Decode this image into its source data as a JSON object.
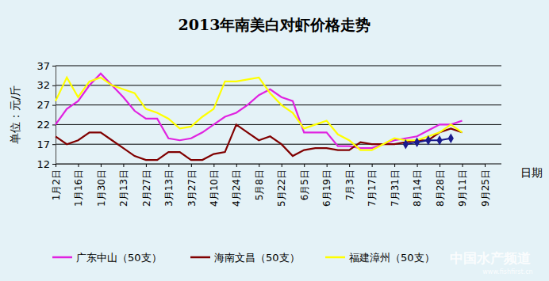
{
  "chart_data": {
    "type": "line",
    "title": "2013年南美白对虾价格走势",
    "y_label": "单位：元/斤",
    "x_label": "日期",
    "annotations": [
      "中国水产频道",
      "www.fishfirst.cn"
    ],
    "categories": [
      "1月2日",
      null,
      "1月16日",
      null,
      "1月30日",
      null,
      "2月13日",
      null,
      "2月27日",
      null,
      "3月13日",
      null,
      "3月27日",
      null,
      "4月10日",
      null,
      "4月24日",
      null,
      "5月8日",
      null,
      "5月22日",
      null,
      "6月5日",
      null,
      "6月19日",
      null,
      "7月3日",
      null,
      "7月17日",
      null,
      "7月31日",
      null,
      "8月14日",
      null,
      "8月28日",
      null,
      "9月11日",
      null,
      "9月25日"
    ],
    "ylim": [
      12,
      37
    ],
    "yticks": [
      12,
      17,
      22,
      27,
      32,
      37
    ],
    "grid": true,
    "legend": "bottom",
    "series": [
      {
        "name": "广东中山（50支）",
        "color": "#e022e0",
        "line_style": "solid",
        "values": [
          22,
          26,
          28,
          32,
          35,
          32,
          29,
          25.5,
          23.5,
          23.5,
          18.5,
          18,
          18.5,
          20,
          22,
          24,
          25,
          27,
          29.5,
          31,
          29,
          28,
          20,
          20,
          20,
          16.5,
          16.5,
          16,
          16,
          17,
          18,
          18.5,
          19,
          20.5,
          22,
          22,
          23,
          null,
          null
        ]
      },
      {
        "name": "海南文昌（50支）",
        "color": "#800000",
        "line_style": "solid",
        "values": [
          19,
          17,
          18,
          20,
          20,
          18,
          16,
          14,
          13,
          13,
          15,
          15,
          13,
          13,
          14.5,
          15,
          22,
          20,
          18,
          19,
          17,
          14,
          15.5,
          16,
          16,
          15.5,
          15.5,
          17.5,
          17,
          17,
          17,
          17.5,
          18,
          18,
          20,
          21,
          20,
          null,
          null
        ]
      },
      {
        "name": "福建漳州（50支）",
        "color": "#ffff00",
        "line_style": "solid",
        "values": [
          28,
          34,
          29,
          33,
          34,
          32,
          31,
          30,
          26,
          25,
          23.5,
          21,
          21.5,
          24,
          26,
          33,
          33,
          33.5,
          34,
          30,
          27,
          25,
          21,
          22,
          23,
          19.5,
          18,
          15.5,
          15.5,
          17,
          18.5,
          18,
          18,
          19,
          20,
          22,
          20,
          null,
          null
        ]
      },
      {
        "color": "#1a1a8c",
        "line_style": "solid",
        "marker": "diamond",
        "values": [
          null,
          null,
          null,
          null,
          null,
          null,
          null,
          null,
          null,
          null,
          null,
          null,
          null,
          null,
          null,
          null,
          null,
          null,
          null,
          null,
          null,
          null,
          null,
          null,
          null,
          null,
          null,
          null,
          null,
          null,
          null,
          17,
          17.5,
          18,
          18,
          18.5,
          null,
          null,
          null
        ]
      }
    ]
  }
}
